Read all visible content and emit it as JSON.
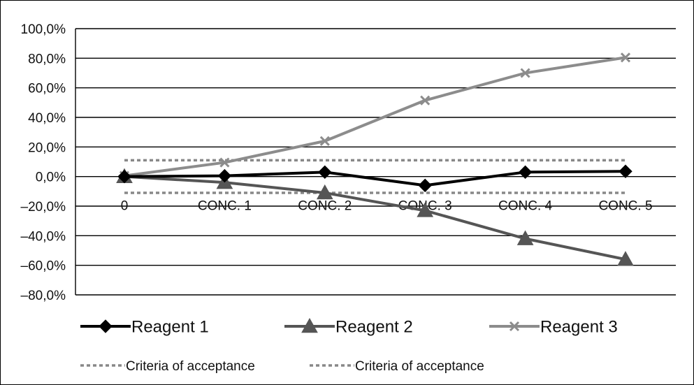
{
  "chart_data": {
    "type": "line",
    "title": "",
    "xlabel": "",
    "ylabel": "",
    "categories": [
      "0",
      "CONC. 1",
      "CONC. 2",
      "CONC. 3",
      "CONC. 4",
      "CONC. 5"
    ],
    "ylim": [
      -80,
      100
    ],
    "yticks": [
      100,
      80,
      60,
      40,
      20,
      0,
      -20,
      -40,
      -60,
      -80
    ],
    "ytick_labels": [
      "100,0%",
      "80,0%",
      "60,0%",
      "40,0%",
      "20,0%",
      "0,0%",
      "–20,0%",
      "–40,0%",
      "–60,0%",
      "–80,0%"
    ],
    "grid": "horizontal",
    "legend_position": "bottom",
    "series": [
      {
        "name": "Reagent 1",
        "values": [
          0,
          0.5,
          3,
          -6,
          3,
          3.5
        ],
        "color": "#000000",
        "marker": "diamond"
      },
      {
        "name": "Reagent 2",
        "values": [
          0,
          -4,
          -11,
          -23,
          -42,
          -56
        ],
        "color": "#555555",
        "marker": "triangle"
      },
      {
        "name": "Reagent 3",
        "values": [
          0.5,
          9.5,
          24,
          51.5,
          70,
          80.5
        ],
        "color": "#8c8c8c",
        "marker": "x"
      },
      {
        "name": "Criteria of acceptance",
        "values": [
          11,
          11,
          11,
          11,
          11,
          11
        ],
        "color": "#888888",
        "marker": "none",
        "dashed": true
      },
      {
        "name": "Criteria of acceptance",
        "values": [
          -11,
          -11,
          -11,
          -11,
          -11,
          -11
        ],
        "color": "#888888",
        "marker": "none",
        "dashed": true
      }
    ]
  }
}
